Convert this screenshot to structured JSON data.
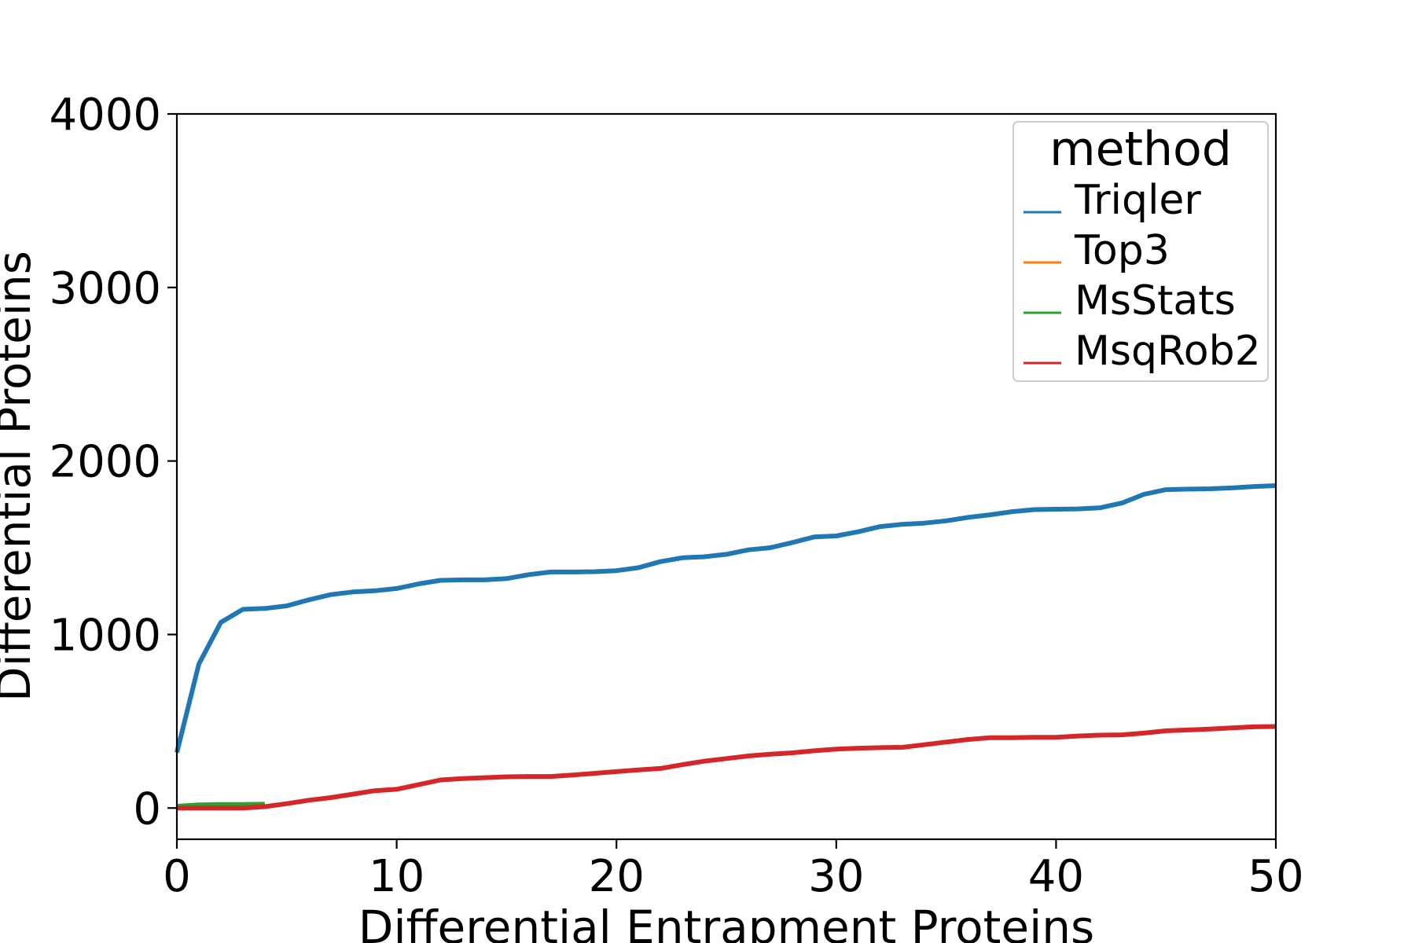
{
  "chart_data": {
    "type": "line",
    "xlabel": "Differential Entrapment Proteins",
    "ylabel": "Differential Proteins",
    "xlim": [
      0,
      50
    ],
    "ylim": [
      -180,
      4000
    ],
    "xticks": [
      0,
      10,
      20,
      30,
      40,
      50
    ],
    "yticks": [
      0,
      1000,
      2000,
      3000,
      4000
    ],
    "grid": false,
    "legend": {
      "title": "method",
      "position": "top-right"
    },
    "series": [
      {
        "name": "Triqler",
        "color": "#1f77b4",
        "x": [
          0,
          1,
          2,
          3,
          4,
          5,
          6,
          7,
          8,
          9,
          10,
          11,
          12,
          13,
          14,
          15,
          16,
          17,
          18,
          19,
          20,
          21,
          22,
          23,
          24,
          25,
          26,
          27,
          28,
          29,
          30,
          31,
          32,
          33,
          34,
          35,
          36,
          37,
          38,
          39,
          40,
          41,
          42,
          43,
          44,
          45,
          46,
          47,
          48,
          49,
          50
        ],
        "y": [
          320,
          830,
          1070,
          1145,
          1150,
          1165,
          1200,
          1230,
          1245,
          1252,
          1265,
          1292,
          1312,
          1315,
          1315,
          1322,
          1345,
          1360,
          1360,
          1362,
          1368,
          1385,
          1420,
          1442,
          1448,
          1462,
          1488,
          1500,
          1530,
          1562,
          1568,
          1592,
          1622,
          1635,
          1642,
          1655,
          1675,
          1690,
          1708,
          1720,
          1722,
          1724,
          1730,
          1758,
          1808,
          1835,
          1838,
          1840,
          1845,
          1853,
          1858
        ]
      },
      {
        "name": "Top3",
        "color": "#ff7f0e",
        "x": [
          0,
          1,
          2,
          3,
          4
        ],
        "y": [
          5,
          12,
          15,
          16,
          18
        ]
      },
      {
        "name": "MsStats",
        "color": "#2ca02c",
        "x": [
          0,
          1,
          2,
          3,
          4
        ],
        "y": [
          10,
          18,
          20,
          20,
          22
        ]
      },
      {
        "name": "MsqRob2",
        "color": "#d62728",
        "x": [
          0,
          1,
          2,
          3,
          4,
          5,
          6,
          7,
          8,
          9,
          10,
          11,
          12,
          13,
          14,
          15,
          16,
          17,
          18,
          19,
          20,
          21,
          22,
          23,
          24,
          25,
          26,
          27,
          28,
          29,
          30,
          31,
          32,
          33,
          34,
          35,
          36,
          37,
          38,
          39,
          40,
          41,
          42,
          43,
          44,
          45,
          46,
          47,
          48,
          49,
          50
        ],
        "y": [
          0,
          0,
          0,
          0,
          8,
          25,
          45,
          60,
          80,
          100,
          108,
          135,
          162,
          170,
          175,
          180,
          182,
          182,
          190,
          200,
          210,
          220,
          228,
          250,
          270,
          285,
          300,
          310,
          318,
          330,
          340,
          345,
          348,
          350,
          365,
          380,
          395,
          405,
          405,
          408,
          408,
          415,
          420,
          422,
          432,
          445,
          450,
          455,
          462,
          468,
          470
        ]
      }
    ]
  }
}
